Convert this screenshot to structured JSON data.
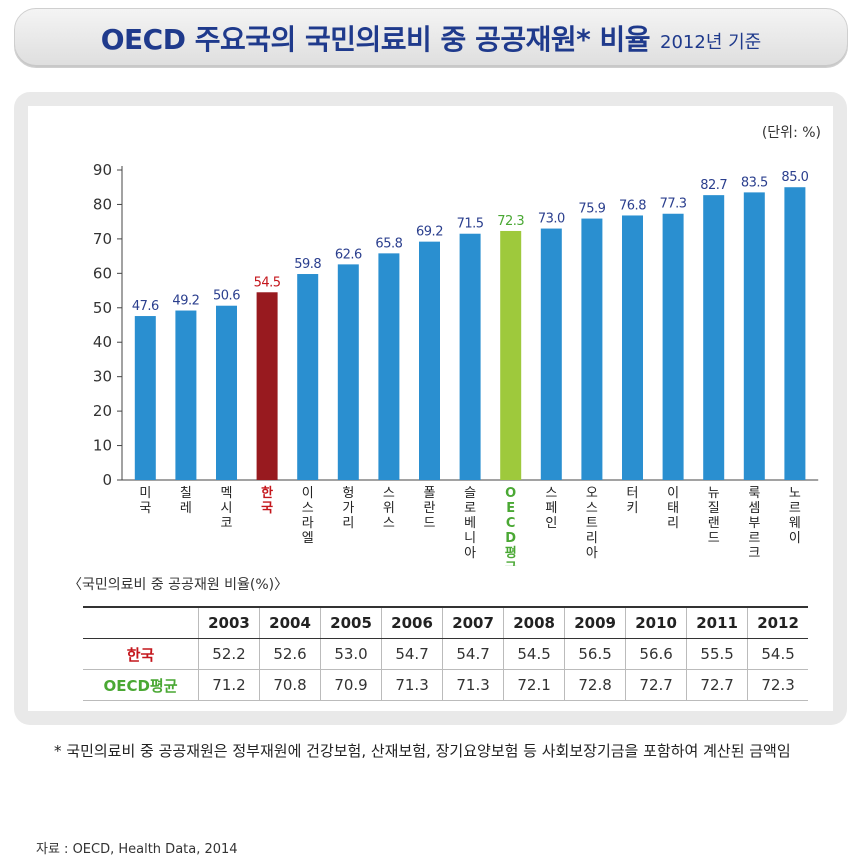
{
  "header": {
    "title": "OECD 주요국의 국민의료비 중 공공재원* 비율",
    "subtitle": "2012년 기준"
  },
  "chart_data": {
    "type": "bar",
    "title": "OECD 주요국의 국민의료비 중 공공재원* 비율",
    "unit_label": "(단위: %)",
    "ylim": [
      0,
      90
    ],
    "yticks": [
      0,
      10,
      20,
      30,
      40,
      50,
      60,
      70,
      80,
      90
    ],
    "categories": [
      "미국",
      "칠레",
      "멕시코",
      "한국",
      "이스라엘",
      "헝가리",
      "스위스",
      "폴란드",
      "슬로베니아",
      "OECD평균",
      "스페인",
      "오스트리아",
      "터키",
      "이태리",
      "뉴질랜드",
      "룩셈부르크",
      "노르웨이"
    ],
    "values": [
      47.6,
      49.2,
      50.6,
      54.5,
      59.8,
      62.6,
      65.8,
      69.2,
      71.5,
      72.3,
      73.0,
      75.9,
      76.8,
      77.3,
      82.7,
      83.5,
      85.0
    ],
    "value_labels": [
      "47.6",
      "49.2",
      "50.6",
      "54.5",
      "59.8",
      "62.6",
      "65.8",
      "69.2",
      "71.5",
      "72.3",
      "73.0",
      "75.9",
      "76.8",
      "77.3",
      "82.7",
      "83.5",
      "85.0"
    ],
    "highlight": {
      "한국": "korea",
      "OECD평균": "oecd"
    },
    "colors": {
      "default": "#2a8fd0",
      "korea": "#981a1f",
      "oecd": "#9ec93c",
      "korea_text": "#c4161c",
      "oecd_text": "#4aa834",
      "label": "#2b3f8e"
    }
  },
  "table": {
    "caption": "〈국민의료비 중 공공재원 비율(%)〉",
    "years": [
      "2003",
      "2004",
      "2005",
      "2006",
      "2007",
      "2008",
      "2009",
      "2010",
      "2011",
      "2012"
    ],
    "rows": [
      {
        "label": "한국",
        "values": [
          "52.2",
          "52.6",
          "53.0",
          "54.7",
          "54.7",
          "54.5",
          "56.5",
          "56.6",
          "55.5",
          "54.5"
        ]
      },
      {
        "label": "OECD평균",
        "values": [
          "71.2",
          "70.8",
          "70.9",
          "71.3",
          "71.3",
          "72.1",
          "72.8",
          "72.7",
          "72.7",
          "72.3"
        ]
      }
    ]
  },
  "footnote": "* 국민의료비 중 공공재원은 정부재원에 건강보험, 산재보험, 장기요양보험 등 사회보장기금을 포함하여 계산된 금액임",
  "source": "자료 : OECD, Health Data, 2014"
}
